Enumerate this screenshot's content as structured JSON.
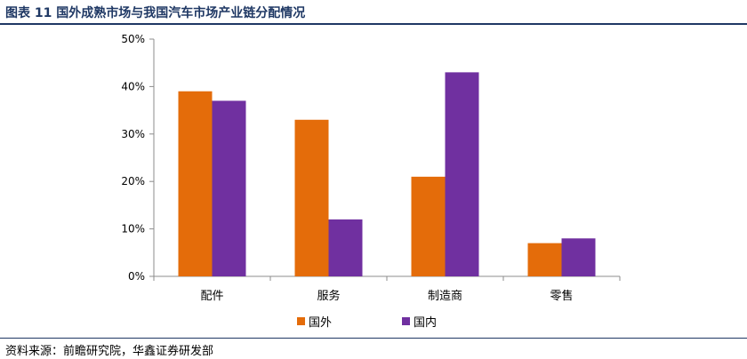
{
  "header": {
    "title": "图表 11 国外成熟市场与我国汽车市场产业链分配情况"
  },
  "footer": {
    "source": "资料来源：前瞻研究院，华鑫证券研发部"
  },
  "chart_data": {
    "type": "bar",
    "categories": [
      "配件",
      "服务",
      "制造商",
      "零售"
    ],
    "series": [
      {
        "name": "国外",
        "values": [
          39,
          33,
          21,
          7
        ],
        "color": "#e46c0a"
      },
      {
        "name": "国内",
        "values": [
          37,
          12,
          43,
          8
        ],
        "color": "#7030a0"
      }
    ],
    "ylim": [
      0,
      50
    ],
    "yticks": [
      0,
      10,
      20,
      30,
      40,
      50
    ],
    "ytick_labels": [
      "0%",
      "10%",
      "20%",
      "30%",
      "40%",
      "50%"
    ],
    "legend_position": "bottom",
    "grid": false
  }
}
